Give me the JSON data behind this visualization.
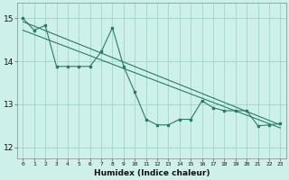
{
  "xlabel": "Humidex (Indice chaleur)",
  "bg_color": "#cef0ea",
  "grid_color": "#a8d8d0",
  "line_color": "#2a7a6a",
  "xlim": [
    -0.5,
    23.5
  ],
  "ylim": [
    11.75,
    15.35
  ],
  "yticks": [
    12,
    13,
    14,
    15
  ],
  "xticks": [
    0,
    1,
    2,
    3,
    4,
    5,
    6,
    7,
    8,
    9,
    10,
    11,
    12,
    13,
    14,
    15,
    16,
    17,
    18,
    19,
    20,
    21,
    22,
    23
  ],
  "main_line_x": [
    0,
    1,
    2,
    3,
    4,
    5,
    6,
    7,
    8,
    9,
    10,
    11,
    12,
    13,
    14,
    15,
    16,
    17,
    18,
    19,
    20,
    21,
    22,
    23
  ],
  "main_line_y": [
    15.0,
    14.72,
    14.83,
    13.88,
    13.88,
    13.88,
    13.88,
    14.22,
    14.78,
    13.88,
    13.28,
    12.65,
    12.52,
    12.52,
    12.65,
    12.65,
    13.08,
    12.92,
    12.85,
    12.85,
    12.85,
    12.5,
    12.52,
    12.55
  ],
  "trend1_x": [
    0,
    23
  ],
  "trend1_y": [
    14.92,
    12.52
  ],
  "trend2_x": [
    0,
    23
  ],
  "trend2_y": [
    14.72,
    12.45
  ]
}
